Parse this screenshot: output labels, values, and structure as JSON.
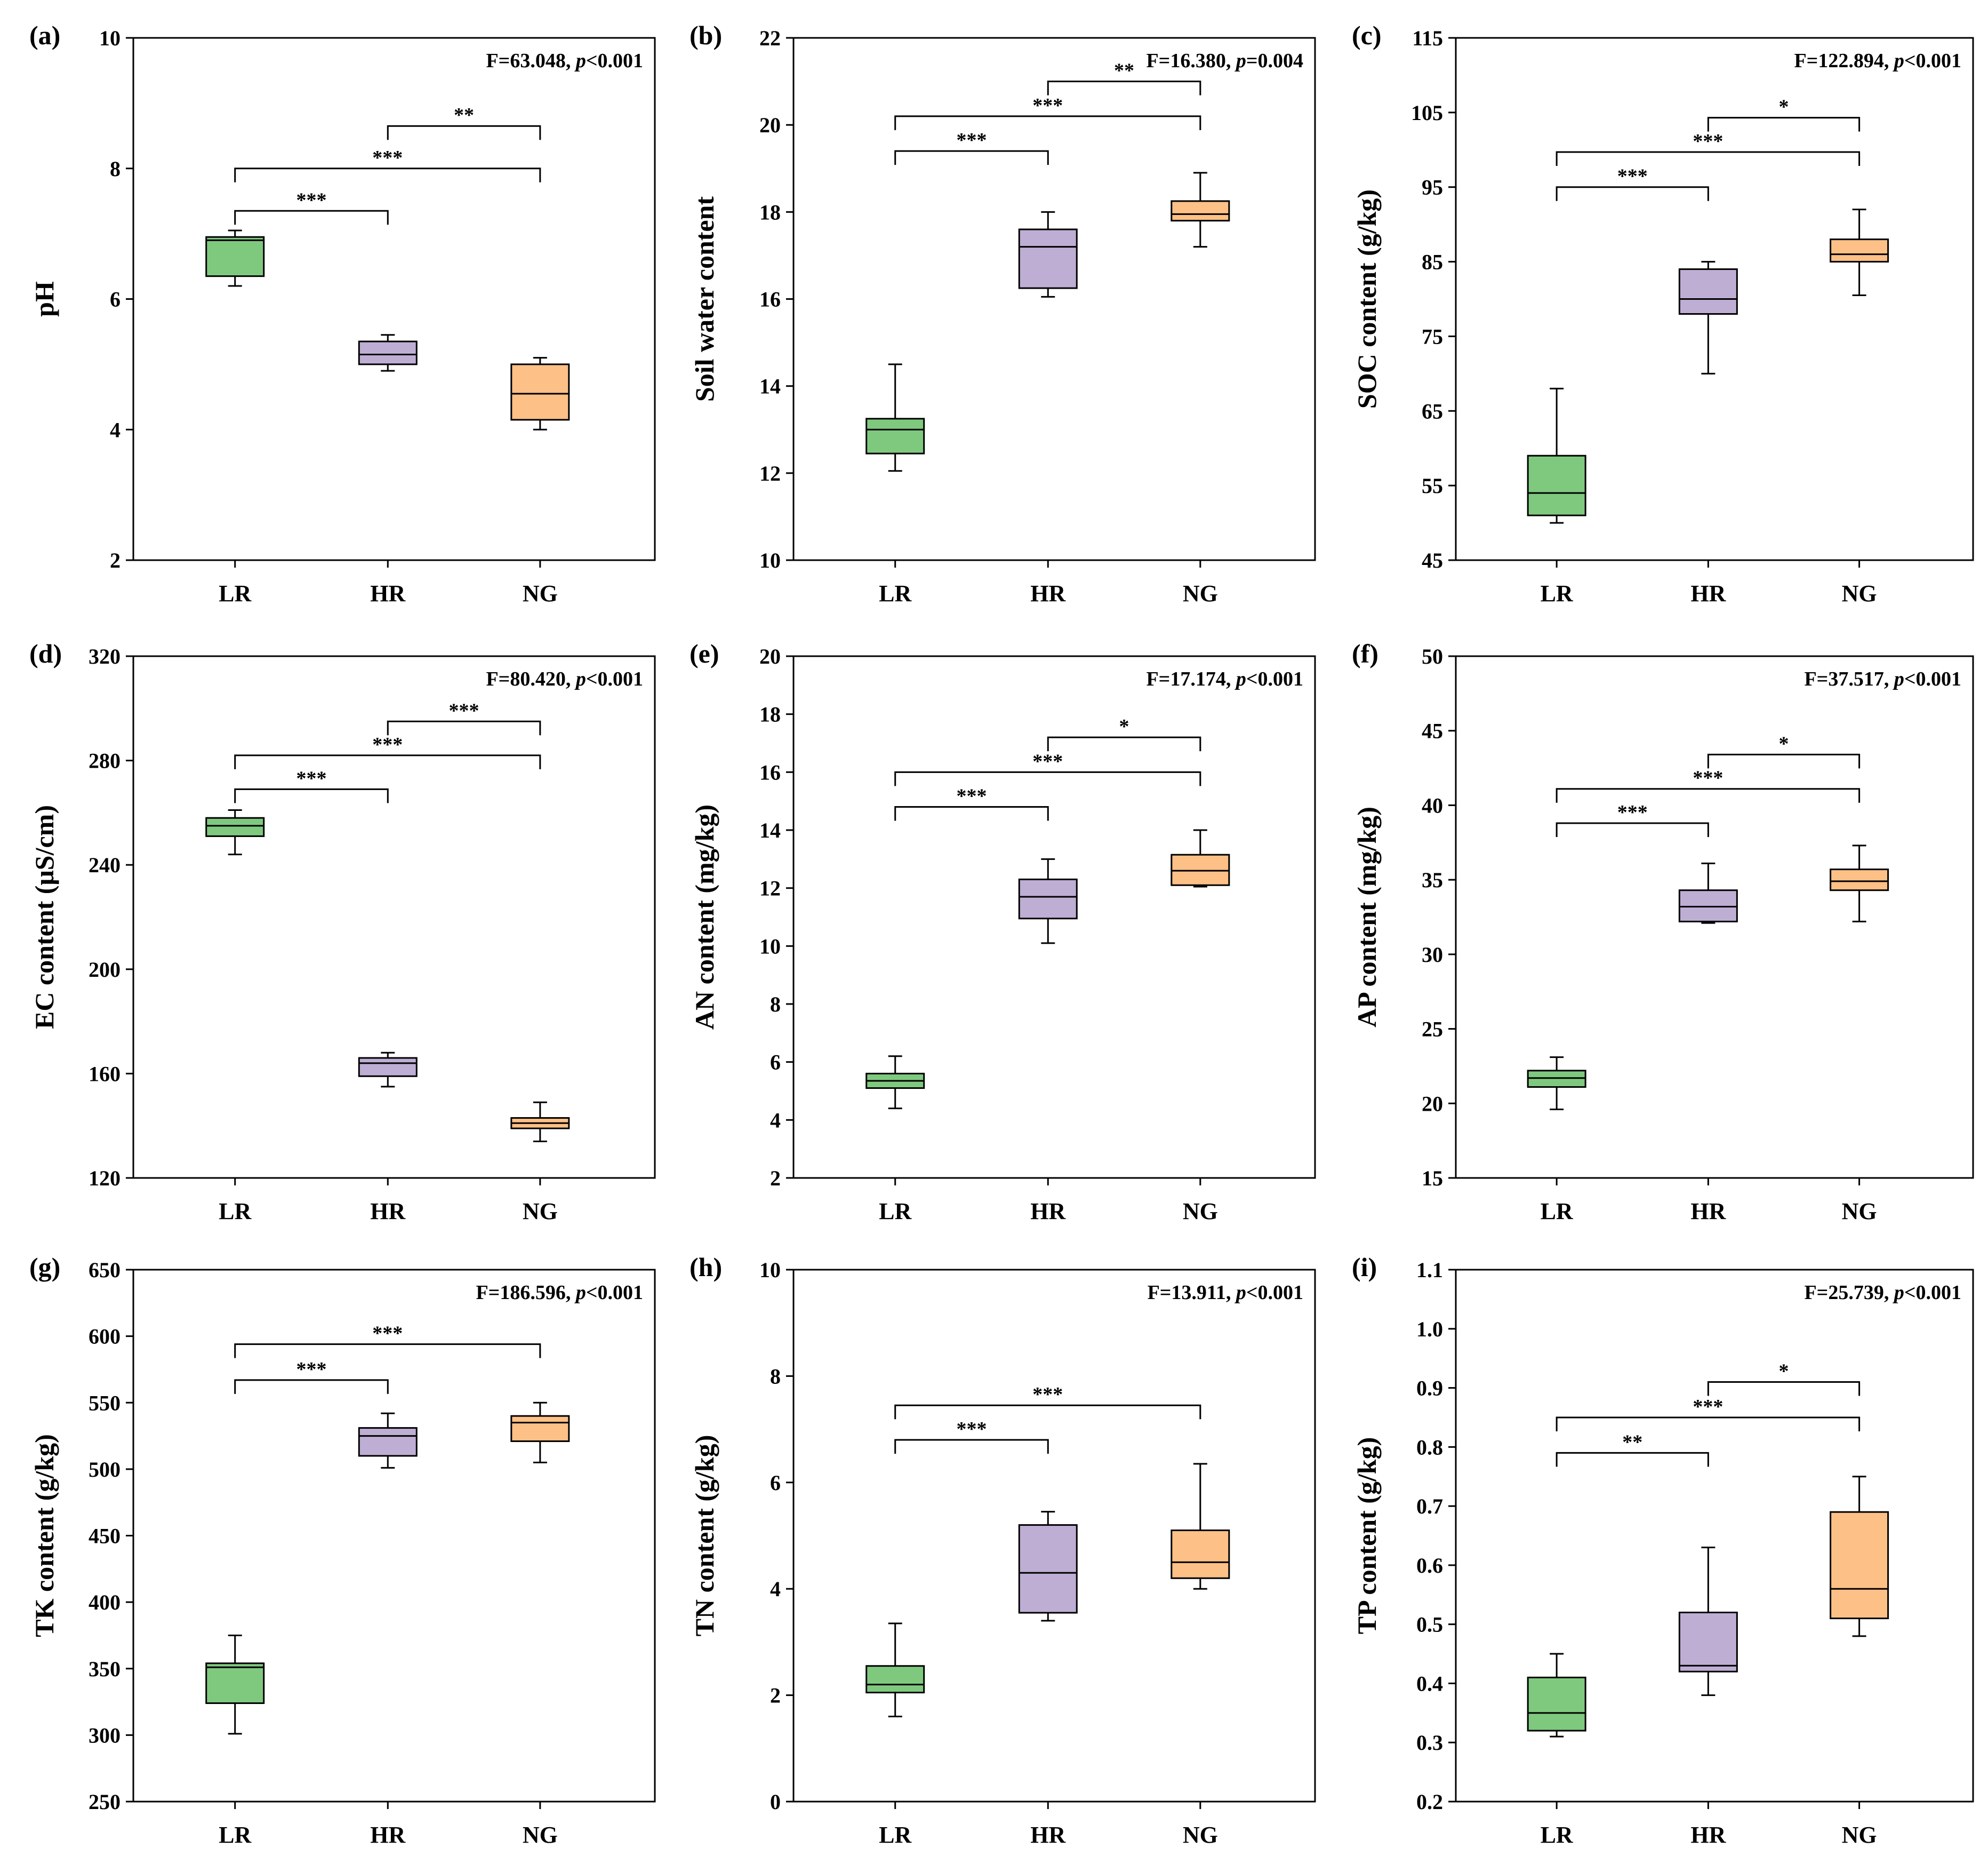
{
  "colors": {
    "LR": "#7fc97f",
    "HR": "#beaed4",
    "NG": "#fdc086",
    "line": "#000000"
  },
  "chart_data": [
    {
      "panel": "(a)",
      "type": "boxplot",
      "ylabel": "pH",
      "ylim": [
        2,
        10
      ],
      "yticks": [
        "2",
        "4",
        "6",
        "8",
        "10"
      ],
      "categories": [
        "LR",
        "HR",
        "NG"
      ],
      "stat": {
        "f": "F=63.048, ",
        "p": "p",
        "rest": "<0.001"
      },
      "boxes": [
        {
          "group": "LR",
          "min": 6.2,
          "q1": 6.35,
          "median": 6.9,
          "q3": 6.95,
          "max": 7.05
        },
        {
          "group": "HR",
          "min": 4.9,
          "q1": 5.0,
          "median": 5.15,
          "q3": 5.35,
          "max": 5.45
        },
        {
          "group": "NG",
          "min": 4.0,
          "q1": 4.15,
          "median": 4.55,
          "q3": 5.0,
          "max": 5.1
        }
      ],
      "comparisons": [
        {
          "from": 0,
          "to": 1,
          "stars": "***",
          "y": 7.35
        },
        {
          "from": 0,
          "to": 2,
          "stars": "***",
          "y": 8.0
        },
        {
          "from": 1,
          "to": 2,
          "stars": "**",
          "y": 8.65
        }
      ]
    },
    {
      "panel": "(b)",
      "type": "boxplot",
      "ylabel": "Soil water content",
      "ylim": [
        10,
        22
      ],
      "yticks": [
        "10",
        "12",
        "14",
        "16",
        "18",
        "20",
        "22"
      ],
      "categories": [
        "LR",
        "HR",
        "NG"
      ],
      "stat": {
        "f": "F=16.380, ",
        "p": "p",
        "rest": "=0.004"
      },
      "boxes": [
        {
          "group": "LR",
          "min": 12.05,
          "q1": 12.45,
          "median": 13.0,
          "q3": 13.25,
          "max": 14.5
        },
        {
          "group": "HR",
          "min": 16.05,
          "q1": 16.25,
          "median": 17.2,
          "q3": 17.6,
          "max": 18.0
        },
        {
          "group": "NG",
          "min": 17.2,
          "q1": 17.8,
          "median": 17.95,
          "q3": 18.25,
          "max": 18.9
        }
      ],
      "comparisons": [
        {
          "from": 0,
          "to": 1,
          "stars": "***",
          "y": 19.4
        },
        {
          "from": 0,
          "to": 2,
          "stars": "***",
          "y": 20.2
        },
        {
          "from": 1,
          "to": 2,
          "stars": "**",
          "y": 21.0
        }
      ]
    },
    {
      "panel": "(c)",
      "type": "boxplot",
      "ylabel": "SOC content (g/kg)",
      "ylim": [
        45,
        115
      ],
      "yticks": [
        "45",
        "55",
        "65",
        "75",
        "85",
        "95",
        "105",
        "115"
      ],
      "categories": [
        "LR",
        "HR",
        "NG"
      ],
      "stat": {
        "f": "F=122.894, ",
        "p": "p",
        "rest": "<0.001"
      },
      "boxes": [
        {
          "group": "LR",
          "min": 50.0,
          "q1": 51.0,
          "median": 54.0,
          "q3": 59.0,
          "max": 68.0
        },
        {
          "group": "HR",
          "min": 70.0,
          "q1": 78.0,
          "median": 80.0,
          "q3": 84.0,
          "max": 85.0
        },
        {
          "group": "NG",
          "min": 80.5,
          "q1": 85.0,
          "median": 86.0,
          "q3": 88.0,
          "max": 92.0
        }
      ],
      "comparisons": [
        {
          "from": 0,
          "to": 1,
          "stars": "***",
          "y": 95.0
        },
        {
          "from": 0,
          "to": 2,
          "stars": "***",
          "y": 99.7
        },
        {
          "from": 1,
          "to": 2,
          "stars": "*",
          "y": 104.3
        }
      ]
    },
    {
      "panel": "(d)",
      "type": "boxplot",
      "ylabel": "EC content (μS/cm)",
      "ylim": [
        120,
        320
      ],
      "yticks": [
        "120",
        "160",
        "200",
        "240",
        "280",
        "320"
      ],
      "categories": [
        "LR",
        "HR",
        "NG"
      ],
      "stat": {
        "f": "F=80.420, ",
        "p": "p",
        "rest": "<0.001"
      },
      "boxes": [
        {
          "group": "LR",
          "min": 244,
          "q1": 251,
          "median": 255,
          "q3": 258,
          "max": 261
        },
        {
          "group": "HR",
          "min": 155,
          "q1": 159,
          "median": 164,
          "q3": 166,
          "max": 168
        },
        {
          "group": "NG",
          "min": 134,
          "q1": 139,
          "median": 141,
          "q3": 143,
          "max": 149
        }
      ],
      "comparisons": [
        {
          "from": 0,
          "to": 1,
          "stars": "***",
          "y": 269
        },
        {
          "from": 0,
          "to": 2,
          "stars": "***",
          "y": 282
        },
        {
          "from": 1,
          "to": 2,
          "stars": "***",
          "y": 295
        }
      ]
    },
    {
      "panel": "(e)",
      "type": "boxplot",
      "ylabel": "AN content (mg/kg)",
      "ylim": [
        2,
        20
      ],
      "yticks": [
        "2",
        "4",
        "6",
        "8",
        "10",
        "12",
        "14",
        "16",
        "18",
        "20"
      ],
      "categories": [
        "LR",
        "HR",
        "NG"
      ],
      "stat": {
        "f": "F=17.174, ",
        "p": "p",
        "rest": "<0.001"
      },
      "boxes": [
        {
          "group": "LR",
          "min": 4.4,
          "q1": 5.1,
          "median": 5.35,
          "q3": 5.6,
          "max": 6.2
        },
        {
          "group": "HR",
          "min": 10.1,
          "q1": 10.95,
          "median": 11.7,
          "q3": 12.3,
          "max": 13.0
        },
        {
          "group": "NG",
          "min": 12.05,
          "q1": 12.1,
          "median": 12.6,
          "q3": 13.15,
          "max": 14.0
        }
      ],
      "comparisons": [
        {
          "from": 0,
          "to": 1,
          "stars": "***",
          "y": 14.8
        },
        {
          "from": 0,
          "to": 2,
          "stars": "***",
          "y": 16.0
        },
        {
          "from": 1,
          "to": 2,
          "stars": "*",
          "y": 17.2
        }
      ]
    },
    {
      "panel": "(f)",
      "type": "boxplot",
      "ylabel": "AP content (mg/kg)",
      "ylim": [
        15,
        50
      ],
      "yticks": [
        "15",
        "20",
        "25",
        "30",
        "35",
        "40",
        "45",
        "50"
      ],
      "categories": [
        "LR",
        "HR",
        "NG"
      ],
      "stat": {
        "f": "F=37.517, ",
        "p": "p",
        "rest": "<0.001"
      },
      "boxes": [
        {
          "group": "LR",
          "min": 19.6,
          "q1": 21.1,
          "median": 21.7,
          "q3": 22.2,
          "max": 23.1
        },
        {
          "group": "HR",
          "min": 32.1,
          "q1": 32.2,
          "median": 33.2,
          "q3": 34.3,
          "max": 36.1
        },
        {
          "group": "NG",
          "min": 32.2,
          "q1": 34.3,
          "median": 34.9,
          "q3": 35.7,
          "max": 37.3
        }
      ],
      "comparisons": [
        {
          "from": 0,
          "to": 1,
          "stars": "***",
          "y": 38.8
        },
        {
          "from": 0,
          "to": 2,
          "stars": "***",
          "y": 41.1
        },
        {
          "from": 1,
          "to": 2,
          "stars": "*",
          "y": 43.4
        }
      ]
    },
    {
      "panel": "(g)",
      "type": "boxplot",
      "ylabel": "TK content (g/kg)",
      "ylim": [
        250,
        650
      ],
      "yticks": [
        "250",
        "300",
        "350",
        "400",
        "450",
        "500",
        "550",
        "600",
        "650"
      ],
      "categories": [
        "LR",
        "HR",
        "NG"
      ],
      "stat": {
        "f": "F=186.596, ",
        "p": "p",
        "rest": "<0.001"
      },
      "boxes": [
        {
          "group": "LR",
          "min": 301,
          "q1": 324,
          "median": 351,
          "q3": 354,
          "max": 375
        },
        {
          "group": "HR",
          "min": 501,
          "q1": 510,
          "median": 525,
          "q3": 531,
          "max": 542
        },
        {
          "group": "NG",
          "min": 505,
          "q1": 521,
          "median": 535,
          "q3": 540,
          "max": 550
        }
      ],
      "comparisons": [
        {
          "from": 0,
          "to": 1,
          "stars": "***",
          "y": 567
        },
        {
          "from": 0,
          "to": 2,
          "stars": "***",
          "y": 594
        }
      ]
    },
    {
      "panel": "(h)",
      "type": "boxplot",
      "ylabel": "TN content (g/kg)",
      "ylim": [
        0,
        10
      ],
      "yticks": [
        "0",
        "2",
        "4",
        "6",
        "8",
        "10"
      ],
      "categories": [
        "LR",
        "HR",
        "NG"
      ],
      "stat": {
        "f": "F=13.911, ",
        "p": "p",
        "rest": "<0.001"
      },
      "boxes": [
        {
          "group": "LR",
          "min": 1.6,
          "q1": 2.05,
          "median": 2.2,
          "q3": 2.55,
          "max": 3.35
        },
        {
          "group": "HR",
          "min": 3.4,
          "q1": 3.55,
          "median": 4.3,
          "q3": 5.2,
          "max": 5.45
        },
        {
          "group": "NG",
          "min": 4.0,
          "q1": 4.2,
          "median": 4.5,
          "q3": 5.1,
          "max": 6.35
        }
      ],
      "comparisons": [
        {
          "from": 0,
          "to": 1,
          "stars": "***",
          "y": 6.8
        },
        {
          "from": 0,
          "to": 2,
          "stars": "***",
          "y": 7.45
        }
      ]
    },
    {
      "panel": "(i)",
      "type": "boxplot",
      "ylabel": "TP content (g/kg)",
      "ylim": [
        0.2,
        1.1
      ],
      "yticks": [
        "0.2",
        "0.3",
        "0.4",
        "0.5",
        "0.6",
        "0.7",
        "0.8",
        "0.9",
        "1.0",
        "1.1"
      ],
      "categories": [
        "LR",
        "HR",
        "NG"
      ],
      "stat": {
        "f": "F=25.739, ",
        "p": "p",
        "rest": "<0.001"
      },
      "boxes": [
        {
          "group": "LR",
          "min": 0.31,
          "q1": 0.32,
          "median": 0.35,
          "q3": 0.41,
          "max": 0.45
        },
        {
          "group": "HR",
          "min": 0.38,
          "q1": 0.42,
          "median": 0.43,
          "q3": 0.52,
          "max": 0.63
        },
        {
          "group": "NG",
          "min": 0.48,
          "q1": 0.51,
          "median": 0.56,
          "q3": 0.69,
          "max": 0.75
        }
      ],
      "comparisons": [
        {
          "from": 0,
          "to": 1,
          "stars": "**",
          "y": 0.79
        },
        {
          "from": 0,
          "to": 2,
          "stars": "***",
          "y": 0.85
        },
        {
          "from": 1,
          "to": 2,
          "stars": "*",
          "y": 0.91
        }
      ]
    }
  ]
}
